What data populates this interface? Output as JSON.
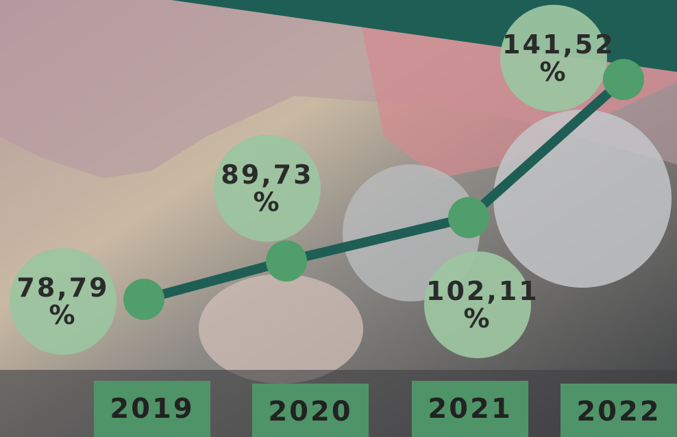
{
  "chart_data": {
    "type": "line",
    "categories": [
      "2019",
      "2020",
      "2021",
      "2022"
    ],
    "values": [
      78.79,
      89.73,
      102.11,
      141.52
    ],
    "value_labels": [
      "78,79 %",
      "89,73 %",
      "102,11 %",
      "141,52 %"
    ],
    "color": "#1e5e55",
    "marker_color": "#4f9e6b"
  }
}
